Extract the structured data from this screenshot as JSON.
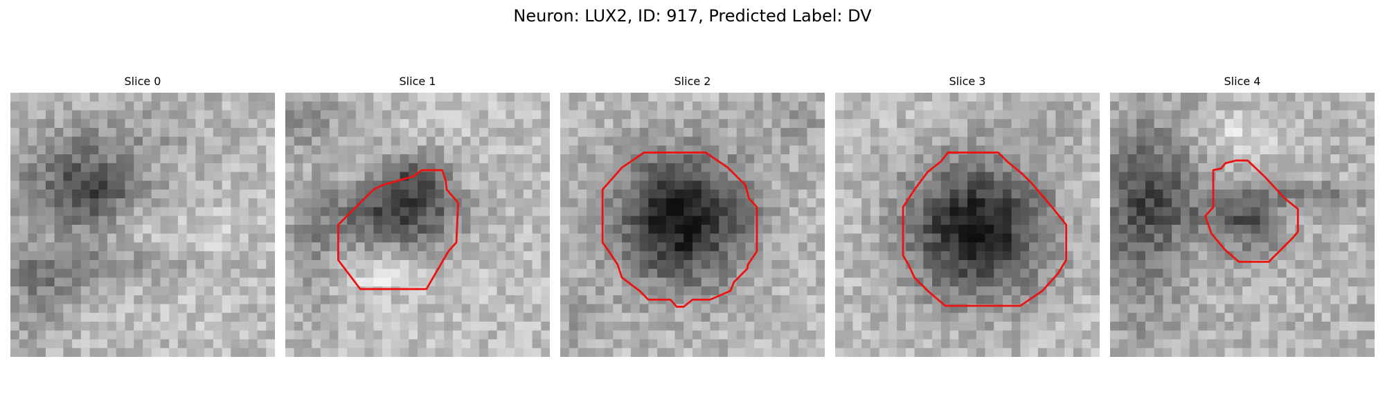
{
  "figure": {
    "title": "Neuron: LUX2, ID: 917, Predicted Label: DV"
  },
  "colors": {
    "contour": "#ee1111",
    "colormap": "grayscale"
  },
  "panels": [
    {
      "title": "Slice 0",
      "has_contour": false
    },
    {
      "title": "Slice 1",
      "has_contour": true
    },
    {
      "title": "Slice 2",
      "has_contour": true
    },
    {
      "title": "Slice 3",
      "has_contour": true
    },
    {
      "title": "Slice 4",
      "has_contour": true
    }
  ]
}
